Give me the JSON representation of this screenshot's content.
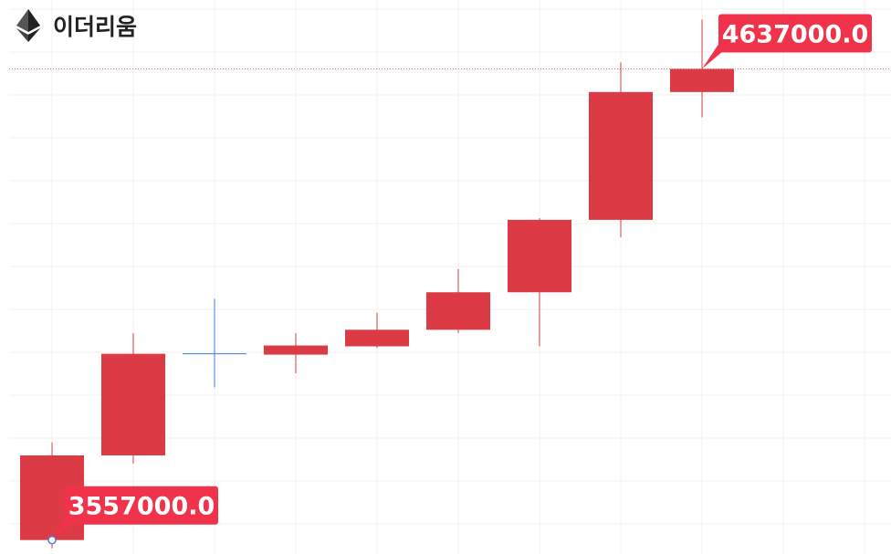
{
  "chart_data": {
    "type": "candlestick",
    "title": "이더리움",
    "icon": "ethereum-icon",
    "up_color": "#dc3a45",
    "doji_color": "#3b7ddd",
    "label_color": "#f0334a",
    "grid": true,
    "ylim": [
      3525000,
      4795000
    ],
    "candles": [
      {
        "open": 3557000,
        "high": 3781000,
        "low": 3538000,
        "close": 3751000
      },
      {
        "open": 3751000,
        "high": 4031000,
        "low": 3732000,
        "close": 3984000
      },
      {
        "open": 3984000,
        "high": 4110000,
        "low": 3907000,
        "close": 3984000
      },
      {
        "open": 3982000,
        "high": 4031000,
        "low": 3939000,
        "close": 4003000
      },
      {
        "open": 4001000,
        "high": 4078000,
        "low": 3997000,
        "close": 4039000
      },
      {
        "open": 4039000,
        "high": 4178000,
        "low": 4031000,
        "close": 4125000
      },
      {
        "open": 4125000,
        "high": 4295000,
        "low": 4001000,
        "close": 4291000
      },
      {
        "open": 4291000,
        "high": 4652000,
        "low": 4251000,
        "close": 4584000
      },
      {
        "open": 4584000,
        "high": 4750000,
        "low": 4526000,
        "close": 4637000
      }
    ],
    "current_price": 4637000,
    "max_label": {
      "text": "4637000.0",
      "value": 4637000,
      "index": 8
    },
    "min_label": {
      "text": "3557000.0",
      "value": 3557000,
      "index": 0
    }
  }
}
